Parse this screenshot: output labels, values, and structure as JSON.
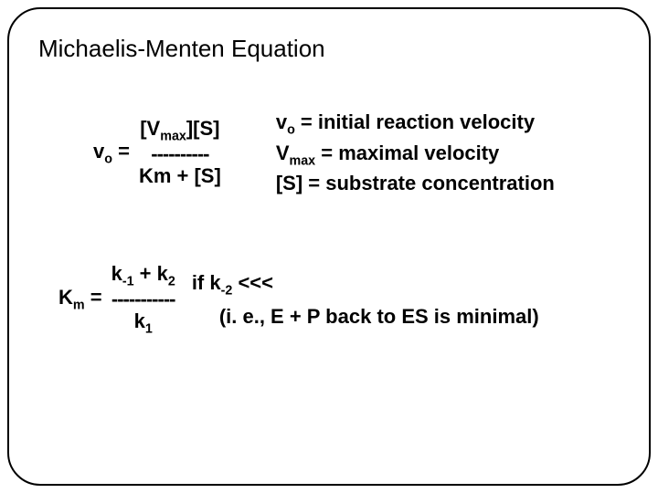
{
  "title": "Michaelis-Menten Equation",
  "colors": {
    "text": "#000000",
    "background": "#ffffff",
    "border": "#000000"
  },
  "typography": {
    "title_fontsize": 26,
    "body_fontsize": 22,
    "body_weight": "bold",
    "font_family": "Arial"
  },
  "eq_v0": {
    "lhs_v": "v",
    "lhs_sub": "o",
    "equals": " = ",
    "numerator_vmax_open": "[V",
    "numerator_vmax_sub": "max",
    "numerator_vmax_close": "][S]",
    "divider": "----------",
    "denominator": "Km + [S]"
  },
  "defs": {
    "line1_sym_v": "v",
    "line1_sym_sub": "o",
    "line1_rest": " = initial reaction velocity",
    "line2_sym_v": "V",
    "line2_sym_sub": "max",
    "line2_rest": " = maximal velocity",
    "line3": "[S] = substrate concentration"
  },
  "eq_km": {
    "lhs_K": "K",
    "lhs_sub": "m",
    "equals": " = ",
    "num_k1": "k",
    "num_k1_sub": "-1",
    "num_plus": " + k",
    "num_k2_sub": "2",
    "divider": "-----------",
    "den_k": "k",
    "den_sub": "1",
    "cond_if": "if k",
    "cond_sub": "-2",
    "cond_arrows": " <<<",
    "cond_note": "(i. e., E + P back to ES is minimal)"
  }
}
